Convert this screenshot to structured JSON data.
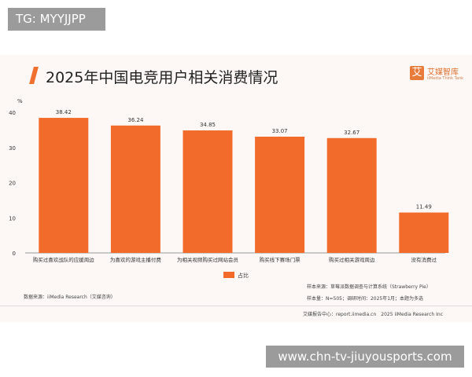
{
  "watermark_top": "TG: MYYJJPP",
  "watermark_bottom": "www.chn-tv-jiuyousports.com",
  "logo": {
    "mark": "艾",
    "name": "艾媒智库",
    "sub": "iiMedia Think Tank"
  },
  "footer": {
    "source": "数据来源：iiMedia Research（艾媒咨询）",
    "sample_source": "样本来源：草莓派数据调查与计算系统（Strawberry Pie）",
    "sample_size": "样本量：N=505；调研时间：2025年1月；本题为多选",
    "site": "艾媒报告中心：report.iimedia.cn　2025 iiMedia Research Inc"
  },
  "chart_data": {
    "type": "bar",
    "title": "2025年中国电竞用户相关消费情况",
    "ylabel": "%",
    "ylim": [
      0,
      40
    ],
    "yticks": [
      0,
      10,
      20,
      30,
      40
    ],
    "categories": [
      "购买过喜欢战队的应援周边",
      "为喜欢的游戏主播付费",
      "为相关视频购买过网站会员",
      "购买线下赛场门票",
      "购买过相关游戏周边",
      "没有消费过"
    ],
    "series": [
      {
        "name": "占比",
        "values": [
          38.42,
          36.24,
          34.85,
          33.07,
          32.67,
          11.49
        ],
        "color": "#f26b2a"
      }
    ],
    "legend": "bottom-center",
    "grid": false
  }
}
